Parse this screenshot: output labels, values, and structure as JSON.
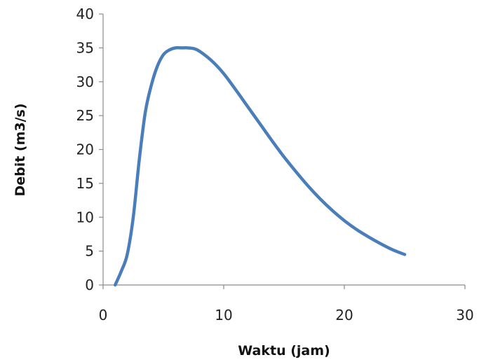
{
  "chart_data": {
    "type": "line",
    "title": "",
    "xlabel": "Waktu (jam)",
    "ylabel": "Debit (m3/s)",
    "xlim": [
      0,
      30
    ],
    "ylim": [
      0,
      40
    ],
    "x_ticks": [
      0,
      10,
      20,
      30
    ],
    "y_ticks": [
      0,
      5,
      10,
      15,
      20,
      25,
      30,
      35,
      40
    ],
    "grid": false,
    "legend": "none",
    "series": [
      {
        "color": "#4a7ebb",
        "x": [
          1.0,
          1.5,
          2.0,
          2.5,
          3.0,
          3.5,
          4.0,
          4.5,
          5.0,
          5.5,
          6.0,
          6.5,
          7.0,
          7.5,
          8.0,
          9.0,
          10.0,
          11.0,
          12.0,
          13.0,
          14.0,
          15.0,
          16.0,
          17.0,
          18.0,
          19.0,
          20.0,
          21.0,
          22.0,
          23.0,
          24.0,
          25.0
        ],
        "y": [
          0.0,
          2.0,
          4.5,
          10.0,
          18.5,
          25.5,
          29.5,
          32.3,
          34.0,
          34.7,
          35.0,
          35.0,
          35.0,
          34.9,
          34.5,
          33.1,
          31.2,
          28.8,
          26.3,
          23.8,
          21.3,
          18.9,
          16.7,
          14.6,
          12.7,
          11.0,
          9.5,
          8.2,
          7.1,
          6.1,
          5.2,
          4.5
        ]
      }
    ]
  }
}
